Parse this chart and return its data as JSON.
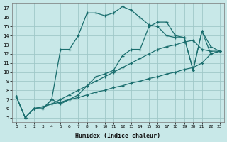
{
  "xlabel": "Humidex (Indice chaleur)",
  "xlim": [
    -0.5,
    23.5
  ],
  "ylim": [
    4.5,
    17.6
  ],
  "yticks": [
    5,
    6,
    7,
    8,
    9,
    10,
    11,
    12,
    13,
    14,
    15,
    16,
    17
  ],
  "xticks": [
    0,
    1,
    2,
    3,
    4,
    5,
    6,
    7,
    8,
    9,
    10,
    11,
    12,
    13,
    14,
    15,
    16,
    17,
    18,
    19,
    20,
    21,
    22,
    23
  ],
  "bg_color": "#c8e8e8",
  "grid_color": "#a0c8c8",
  "line_color": "#1a6e6e",
  "series": [
    {
      "x": [
        0,
        1,
        2,
        3,
        4,
        5,
        6,
        7,
        8,
        9,
        10,
        11,
        12,
        13,
        14,
        15,
        16,
        17,
        18,
        19,
        20,
        21,
        22,
        23
      ],
      "y": [
        7.3,
        5.0,
        6.0,
        6.2,
        6.5,
        6.7,
        7.0,
        7.2,
        7.5,
        7.8,
        8.0,
        8.3,
        8.5,
        8.8,
        9.0,
        9.3,
        9.5,
        9.8,
        10.0,
        10.3,
        10.5,
        11.0,
        12.0,
        12.3
      ]
    },
    {
      "x": [
        0,
        1,
        2,
        3,
        4,
        5,
        6,
        7,
        8,
        9,
        10,
        11,
        12,
        13,
        14,
        15,
        16,
        17,
        18,
        19,
        20,
        21,
        22,
        23
      ],
      "y": [
        7.3,
        5.0,
        6.0,
        6.2,
        6.5,
        7.0,
        7.5,
        8.0,
        8.5,
        9.0,
        9.5,
        10.0,
        10.5,
        11.0,
        11.5,
        12.0,
        12.5,
        12.8,
        13.0,
        13.3,
        13.5,
        12.5,
        12.3,
        12.3
      ]
    },
    {
      "x": [
        0,
        1,
        2,
        3,
        4,
        5,
        6,
        7,
        8,
        9,
        10,
        11,
        12,
        13,
        14,
        15,
        16,
        17,
        18,
        19,
        20,
        21,
        22,
        23
      ],
      "y": [
        7.3,
        5.0,
        6.0,
        6.0,
        7.0,
        12.5,
        12.5,
        14.0,
        16.5,
        16.5,
        16.2,
        16.5,
        17.2,
        16.8,
        16.0,
        15.2,
        15.0,
        14.0,
        13.8,
        13.8,
        10.2,
        14.5,
        12.0,
        12.3
      ]
    },
    {
      "x": [
        3,
        4,
        5,
        6,
        7,
        8,
        9,
        10,
        11,
        12,
        13,
        14,
        15,
        16,
        17,
        18,
        19,
        20,
        21,
        22,
        23
      ],
      "y": [
        6.0,
        7.0,
        6.5,
        7.0,
        7.5,
        8.5,
        9.5,
        9.8,
        10.2,
        11.8,
        12.5,
        12.5,
        15.0,
        15.5,
        15.5,
        14.0,
        13.8,
        10.2,
        14.5,
        12.8,
        12.3
      ]
    }
  ]
}
